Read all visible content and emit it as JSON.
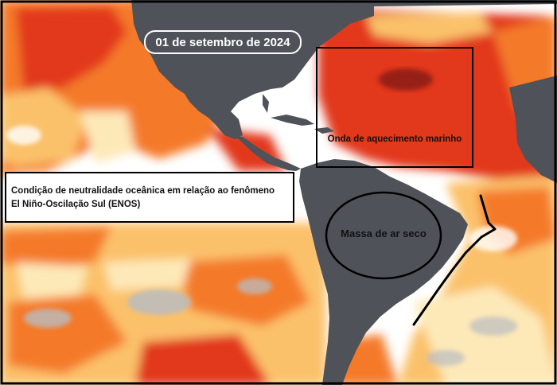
{
  "map": {
    "date_label": "01 de setembro de 2024",
    "enso_line1": "Condição de neutralidade oceânica em relação ao fenômeno",
    "enso_line2": "El Niño-Oscilação Sul (ENOS)",
    "heat_wave_label": "Onda de aquecimento marinho",
    "dry_air_label": "Massa de ar seco"
  },
  "colors": {
    "land": "#4f5359",
    "ocean_neutral": "#ffffff",
    "anomaly_pale": "#fde9b8",
    "anomaly_light": "#fbc16b",
    "anomaly_orange": "#f47a2a",
    "anomaly_red": "#e2391c",
    "anomaly_dark": "#8b1e12",
    "cold_anomaly": "#b9bcc1",
    "annotation": "#000000"
  }
}
